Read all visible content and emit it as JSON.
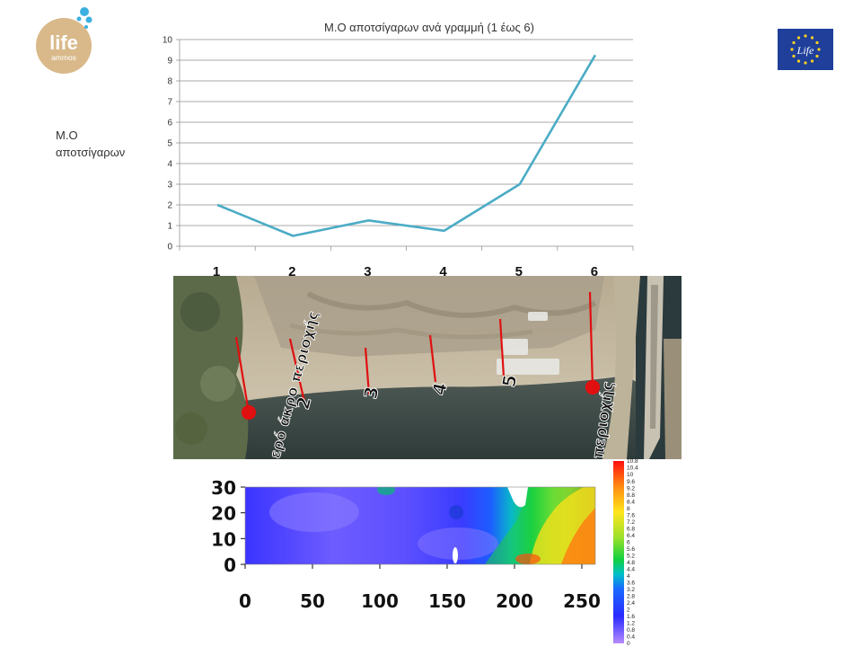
{
  "logo_left": {
    "text_top": "life",
    "text_bottom": "ammos"
  },
  "logo_right": {
    "text": "Life"
  },
  "side_label": {
    "line1": "Μ.Ο",
    "line2": "αποτσίγαρων"
  },
  "chart_data": [
    {
      "type": "line",
      "title": "Μ.Ο αποτσίγαρων ανά γραμμή (1 έως 6)",
      "categories": [
        "1",
        "2",
        "3",
        "4",
        "5",
        "6"
      ],
      "series": [
        {
          "values": [
            2.0,
            0.5,
            1.25,
            0.75,
            3.0,
            9.25
          ]
        }
      ],
      "ylim": [
        0,
        10
      ],
      "yticks": [
        0,
        1,
        2,
        3,
        4,
        5,
        6,
        7,
        8,
        9,
        10
      ],
      "grid": true,
      "color": "#4bacc6"
    },
    {
      "type": "heatmap",
      "xticks": [
        0,
        50,
        100,
        150,
        200,
        250
      ],
      "yticks": [
        0,
        10,
        20,
        30
      ],
      "xlim": [
        0,
        260
      ],
      "ylim": [
        0,
        30
      ],
      "colorbar_ticks": [
        "0",
        "0.4",
        "0.8",
        "1.2",
        "1.6",
        "2",
        "2.4",
        "2.8",
        "3.2",
        "3.6",
        "4",
        "4.4",
        "4.8",
        "5.2",
        "5.6",
        "6",
        "6.4",
        "6.8",
        "7.2",
        "7.6",
        "8",
        "8.4",
        "8.8",
        "9.2",
        "9.6",
        "10",
        "10.4",
        "10.8"
      ],
      "colorbar_range": [
        0,
        10.8
      ]
    }
  ],
  "photo": {
    "labels": [
      "2",
      "3",
      "4",
      "5"
    ],
    "place_left": "ερό άκρο περιοχής",
    "place_right": "περιοχής"
  },
  "colors": {
    "line": "#4bacc6",
    "grid": "#8c8c8c",
    "marker_red": "#e01010",
    "eu_blue": "#1f3f9a",
    "logo_beige": "#d9b98a",
    "logo_blue": "#3bb0e0"
  }
}
